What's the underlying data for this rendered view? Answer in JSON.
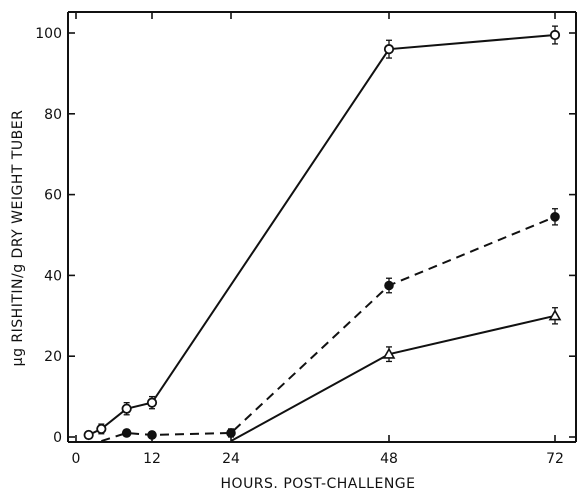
{
  "chart_data": {
    "type": "line",
    "title": "",
    "xlabel": "HOURS. POST-CHALLENGE",
    "ylabel": "μg RISHITIN/g DRY WEIGHT TUBER",
    "xlim": [
      0,
      72
    ],
    "ylim": [
      0,
      100
    ],
    "xticks": [
      0,
      12,
      24,
      48,
      72
    ],
    "yticks": [
      0,
      20,
      40,
      60,
      80,
      100
    ],
    "grid": false,
    "legend": "none",
    "series": [
      {
        "marker": "open-circle",
        "line_style": "solid",
        "x": [
          2,
          4,
          8,
          12,
          48,
          72
        ],
        "y": [
          0.5,
          2,
          7,
          8.5,
          96,
          99.5
        ],
        "error": [
          0.8,
          1.2,
          1.5,
          1.5,
          2.2,
          2.2
        ]
      },
      {
        "marker": "filled-circle",
        "line_style": "dashed",
        "x": [
          4,
          8,
          12,
          24,
          48,
          72
        ],
        "y": [
          -1,
          1,
          0.5,
          1,
          37.5,
          54.5
        ],
        "error": [
          0,
          0.8,
          0.8,
          1,
          1.8,
          2
        ]
      },
      {
        "marker": "open-triangle",
        "line_style": "solid",
        "x": [
          24,
          48,
          72
        ],
        "y": [
          -1,
          20.5,
          30
        ],
        "error": [
          0,
          1.8,
          2
        ]
      }
    ]
  }
}
